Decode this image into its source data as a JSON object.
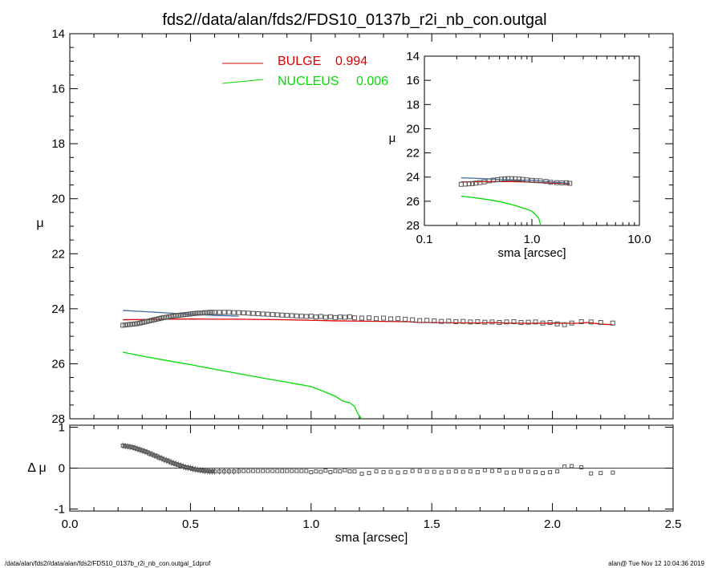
{
  "title": "fds2//data/alan/fds2/FDS10_0137b_r2i_nb_con.outgal",
  "footer": {
    "left": "/data/alan/fds2//data/alan/fds2/FDS10_0137b_r2i_nb_con.outgal_1dprof",
    "right": "alan@  Tue Nov 12 10:04:36 2019"
  },
  "legend": [
    {
      "label": "BULGE",
      "value": "0.994",
      "color": "#dd0000"
    },
    {
      "label": "NUCLEUS",
      "value": "0.006",
      "color": "#00dd00"
    }
  ],
  "colors": {
    "bulge": "#dd0000",
    "nucleus": "#00dd00",
    "total": "#4169aa",
    "data": "#555555",
    "axis": "#000000"
  },
  "chart_data": [
    {
      "type": "scatter",
      "name_role": "main-profile",
      "xlabel": "",
      "ylabel": "μ",
      "xlim": [
        0.0,
        2.5
      ],
      "ylim": [
        28,
        14
      ],
      "y_inverted": true,
      "yticks": [
        "14",
        "16",
        "18",
        "20",
        "22",
        "24",
        "26",
        "28"
      ],
      "xticks": [
        0.0,
        0.5,
        1.0,
        1.5,
        2.0,
        2.5
      ],
      "series": [
        {
          "name": "data",
          "style": "squares",
          "x": [
            0.22,
            0.23,
            0.24,
            0.25,
            0.26,
            0.27,
            0.28,
            0.29,
            0.3,
            0.31,
            0.32,
            0.33,
            0.34,
            0.35,
            0.36,
            0.37,
            0.38,
            0.39,
            0.4,
            0.41,
            0.42,
            0.43,
            0.44,
            0.45,
            0.46,
            0.47,
            0.48,
            0.49,
            0.5,
            0.51,
            0.52,
            0.53,
            0.54,
            0.55,
            0.56,
            0.57,
            0.58,
            0.59,
            0.6,
            0.62,
            0.64,
            0.66,
            0.68,
            0.7,
            0.72,
            0.74,
            0.76,
            0.78,
            0.8,
            0.82,
            0.84,
            0.86,
            0.88,
            0.9,
            0.92,
            0.94,
            0.96,
            0.98,
            1.0,
            1.02,
            1.04,
            1.06,
            1.08,
            1.1,
            1.12,
            1.14,
            1.16,
            1.18,
            1.21,
            1.24,
            1.27,
            1.3,
            1.33,
            1.36,
            1.39,
            1.42,
            1.45,
            1.48,
            1.51,
            1.54,
            1.57,
            1.6,
            1.63,
            1.66,
            1.69,
            1.72,
            1.75,
            1.78,
            1.81,
            1.84,
            1.87,
            1.9,
            1.93,
            1.96,
            1.99,
            2.02,
            2.05,
            2.08,
            2.12,
            2.16,
            2.2,
            2.25
          ],
          "y": [
            24.6,
            24.59,
            24.58,
            24.57,
            24.56,
            24.55,
            24.54,
            24.52,
            24.5,
            24.48,
            24.46,
            24.44,
            24.42,
            24.4,
            24.38,
            24.36,
            24.34,
            24.32,
            24.31,
            24.29,
            24.28,
            24.26,
            24.25,
            24.24,
            24.23,
            24.22,
            24.21,
            24.2,
            24.19,
            24.18,
            24.17,
            24.16,
            24.16,
            24.15,
            24.14,
            24.14,
            24.13,
            24.13,
            24.13,
            24.13,
            24.13,
            24.13,
            24.14,
            24.14,
            24.15,
            24.16,
            24.17,
            24.18,
            24.19,
            24.2,
            24.21,
            24.22,
            24.23,
            24.24,
            24.25,
            24.26,
            24.27,
            24.28,
            24.27,
            24.3,
            24.28,
            24.31,
            24.29,
            24.32,
            24.3,
            24.31,
            24.29,
            24.33,
            24.34,
            24.33,
            24.36,
            24.34,
            24.37,
            24.36,
            24.38,
            24.4,
            24.43,
            24.42,
            24.44,
            24.46,
            24.45,
            24.47,
            24.46,
            24.48,
            24.47,
            24.49,
            24.48,
            24.5,
            24.48,
            24.47,
            24.5,
            24.49,
            24.48,
            24.52,
            24.5,
            24.55,
            24.58,
            24.52,
            24.47,
            24.48,
            24.5,
            24.52
          ]
        },
        {
          "name": "BULGE",
          "style": "line",
          "colorKey": "bulge",
          "x": [
            0.22,
            0.3,
            0.4,
            0.5,
            0.6,
            0.7,
            0.8,
            0.9,
            1.0,
            1.1,
            1.2,
            1.3,
            1.4,
            1.45,
            1.5,
            1.6,
            1.7,
            1.75,
            1.8,
            1.9,
            2.0,
            2.1,
            2.15,
            2.2,
            2.25
          ],
          "y": [
            24.4,
            24.39,
            24.38,
            24.37,
            24.38,
            24.38,
            24.39,
            24.4,
            24.42,
            24.44,
            24.45,
            24.46,
            24.47,
            24.5,
            24.5,
            24.51,
            24.52,
            24.5,
            24.52,
            24.53,
            24.52,
            24.53,
            24.5,
            24.56,
            24.58
          ]
        },
        {
          "name": "NUCLEUS",
          "style": "line",
          "colorKey": "nucleus",
          "x": [
            0.22,
            0.3,
            0.4,
            0.5,
            0.6,
            0.7,
            0.8,
            0.9,
            1.0,
            1.05,
            1.1,
            1.13,
            1.16,
            1.18,
            1.19,
            1.2,
            1.21
          ],
          "y": [
            25.58,
            25.72,
            25.88,
            26.03,
            26.2,
            26.36,
            26.52,
            26.67,
            26.83,
            27.0,
            27.18,
            27.35,
            27.42,
            27.55,
            27.75,
            27.9,
            28.1
          ]
        },
        {
          "name": "total",
          "style": "line",
          "colorKey": "total",
          "x": [
            0.22,
            0.3,
            0.4,
            0.5,
            0.6,
            0.7
          ],
          "y": [
            24.06,
            24.1,
            24.15,
            24.2,
            24.24,
            24.27
          ]
        }
      ]
    },
    {
      "type": "scatter",
      "name_role": "residuals",
      "xlabel": "sma [arcsec]",
      "ylabel": "Δ μ",
      "xlim": [
        0.0,
        2.5
      ],
      "ylim": [
        -1.05,
        1.05
      ],
      "yticks": [
        "1",
        "0",
        "-1"
      ],
      "xticks": [
        "0.0",
        "0.5",
        "1.0",
        "1.5",
        "2.0",
        "2.5"
      ],
      "series": [
        {
          "name": "residual",
          "style": "squares",
          "x": [
            0.22,
            0.23,
            0.24,
            0.25,
            0.26,
            0.27,
            0.28,
            0.29,
            0.3,
            0.31,
            0.32,
            0.33,
            0.34,
            0.35,
            0.36,
            0.37,
            0.38,
            0.39,
            0.4,
            0.41,
            0.42,
            0.43,
            0.44,
            0.45,
            0.46,
            0.47,
            0.48,
            0.49,
            0.5,
            0.51,
            0.52,
            0.53,
            0.54,
            0.55,
            0.56,
            0.57,
            0.58,
            0.59,
            0.6,
            0.62,
            0.64,
            0.66,
            0.68,
            0.7,
            0.72,
            0.74,
            0.76,
            0.78,
            0.8,
            0.82,
            0.84,
            0.86,
            0.88,
            0.9,
            0.92,
            0.94,
            0.96,
            0.98,
            1.0,
            1.02,
            1.04,
            1.06,
            1.08,
            1.1,
            1.12,
            1.14,
            1.16,
            1.18,
            1.21,
            1.24,
            1.27,
            1.3,
            1.33,
            1.36,
            1.39,
            1.42,
            1.45,
            1.48,
            1.51,
            1.54,
            1.57,
            1.6,
            1.63,
            1.66,
            1.69,
            1.72,
            1.75,
            1.78,
            1.81,
            1.84,
            1.87,
            1.9,
            1.93,
            1.96,
            1.99,
            2.02,
            2.05,
            2.08,
            2.12,
            2.16,
            2.2,
            2.25
          ],
          "y": [
            0.55,
            0.54,
            0.53,
            0.52,
            0.51,
            0.49,
            0.47,
            0.45,
            0.43,
            0.41,
            0.39,
            0.36,
            0.34,
            0.31,
            0.29,
            0.26,
            0.24,
            0.21,
            0.19,
            0.17,
            0.14,
            0.12,
            0.1,
            0.08,
            0.06,
            0.04,
            0.02,
            0.01,
            0.0,
            -0.02,
            -0.03,
            -0.04,
            -0.05,
            -0.06,
            -0.07,
            -0.07,
            -0.08,
            -0.08,
            -0.08,
            -0.08,
            -0.08,
            -0.08,
            -0.08,
            -0.07,
            -0.07,
            -0.07,
            -0.07,
            -0.07,
            -0.07,
            -0.07,
            -0.07,
            -0.07,
            -0.07,
            -0.07,
            -0.07,
            -0.07,
            -0.07,
            -0.07,
            -0.1,
            -0.08,
            -0.09,
            -0.06,
            -0.1,
            -0.07,
            -0.08,
            -0.05,
            -0.08,
            -0.08,
            -0.14,
            -0.12,
            -0.08,
            -0.1,
            -0.09,
            -0.11,
            -0.1,
            -0.07,
            -0.07,
            -0.09,
            -0.09,
            -0.11,
            -0.09,
            -0.08,
            -0.09,
            -0.08,
            -0.1,
            -0.05,
            -0.07,
            -0.06,
            -0.11,
            -0.11,
            -0.07,
            -0.09,
            -0.1,
            -0.12,
            -0.1,
            -0.08,
            0.04,
            0.05,
            0.02,
            -0.13,
            -0.12,
            -0.11
          ]
        }
      ]
    },
    {
      "type": "scatter",
      "name_role": "inset-log",
      "xlabel": "sma [arcsec]",
      "ylabel": "μ",
      "x_scale": "log",
      "xlim": [
        0.1,
        10.0
      ],
      "ylim": [
        28,
        14
      ],
      "y_inverted": true,
      "xticks": [
        "0.1",
        "1.0",
        "10.0"
      ],
      "yticks": [
        "14",
        "16",
        "18",
        "20",
        "22",
        "24",
        "26",
        "28"
      ],
      "series": [
        {
          "name": "data",
          "style": "squares",
          "x": [
            0.22,
            0.24,
            0.26,
            0.28,
            0.3,
            0.33,
            0.36,
            0.4,
            0.44,
            0.48,
            0.52,
            0.56,
            0.6,
            0.65,
            0.7,
            0.76,
            0.82,
            0.9,
            1.0,
            1.1,
            1.2,
            1.35,
            1.5,
            1.7,
            1.9,
            2.1,
            2.25
          ],
          "y": [
            24.6,
            24.58,
            24.56,
            24.54,
            24.5,
            24.45,
            24.4,
            24.31,
            24.25,
            24.21,
            24.17,
            24.15,
            24.13,
            24.13,
            24.14,
            24.16,
            24.19,
            24.23,
            24.27,
            24.3,
            24.31,
            24.36,
            24.43,
            24.46,
            24.48,
            24.47,
            24.52
          ]
        },
        {
          "name": "BULGE",
          "style": "line",
          "colorKey": "bulge",
          "x": [
            0.22,
            0.3,
            0.4,
            0.5,
            0.7,
            1.0,
            1.5,
            2.0,
            2.25
          ],
          "y": [
            24.4,
            24.39,
            24.38,
            24.37,
            24.38,
            24.42,
            24.5,
            24.52,
            24.58
          ]
        },
        {
          "name": "NUCLEUS",
          "style": "line",
          "colorKey": "nucleus",
          "x": [
            0.22,
            0.3,
            0.4,
            0.5,
            0.6,
            0.7,
            0.8,
            0.9,
            1.0,
            1.1,
            1.16,
            1.2,
            1.21
          ],
          "y": [
            25.58,
            25.72,
            25.88,
            26.03,
            26.2,
            26.36,
            26.52,
            26.67,
            26.83,
            27.18,
            27.42,
            27.9,
            28.1
          ]
        },
        {
          "name": "total",
          "style": "line",
          "colorKey": "total",
          "x": [
            0.22,
            0.3,
            0.4,
            0.5,
            0.7,
            1.0,
            1.5,
            2.25
          ],
          "y": [
            24.06,
            24.1,
            24.15,
            24.2,
            24.24,
            24.27,
            24.4,
            24.52
          ]
        }
      ]
    }
  ]
}
